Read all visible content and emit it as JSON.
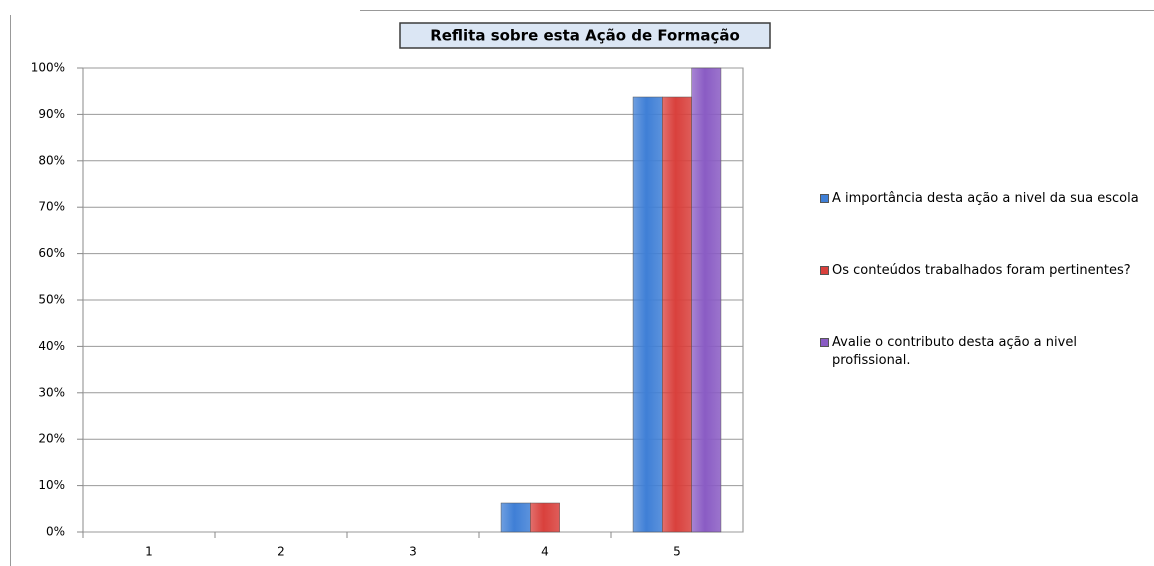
{
  "chart_data": {
    "type": "bar",
    "title": "Reflita sobre esta Ação de Formação",
    "categories": [
      "1",
      "2",
      "3",
      "4",
      "5"
    ],
    "series": [
      {
        "name": "A importância desta ação a nivel da sua escola",
        "color": "#3f7fd6",
        "values": [
          0,
          0,
          0,
          6.25,
          93.75
        ]
      },
      {
        "name": "Os conteúdos trabalhados foram pertinentes?",
        "color": "#d9403c",
        "values": [
          0,
          0,
          0,
          6.25,
          93.75
        ]
      },
      {
        "name": "Avalie o contributo desta ação a nivel profissional.",
        "color": "#8a5cc4",
        "values": [
          0,
          0,
          0,
          0,
          100
        ]
      }
    ],
    "ylim": [
      0,
      100
    ],
    "yticks": [
      {
        "value": 0,
        "label": "0%"
      },
      {
        "value": 10,
        "label": "10%"
      },
      {
        "value": 20,
        "label": "20%"
      },
      {
        "value": 30,
        "label": "30%"
      },
      {
        "value": 40,
        "label": "40%"
      },
      {
        "value": 50,
        "label": "50%"
      },
      {
        "value": 60,
        "label": "60%"
      },
      {
        "value": 70,
        "label": "70%"
      },
      {
        "value": 80,
        "label": "80%"
      },
      {
        "value": 90,
        "label": "90%"
      },
      {
        "value": 100,
        "label": "100%"
      }
    ],
    "grid": true,
    "legend": "right"
  }
}
